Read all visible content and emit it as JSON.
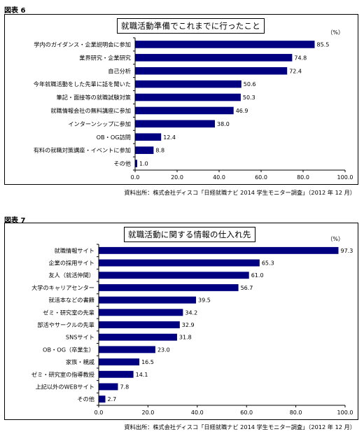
{
  "chart_data": [
    {
      "type": "bar",
      "orientation": "horizontal",
      "figure_label": "図表 6",
      "title": "就職活動準備でこれまでに行ったこと",
      "unit": "（%）",
      "source": "資料出所：株式会社ディスコ「日経就職ナビ 2014 学生モニター調査」（2012 年 12 月）",
      "categories": [
        "学内のガイダンス・企業説明会に参加",
        "業界研究・企業研究",
        "自己分析",
        "今年就職活動をした先輩に話を聞いた",
        "筆記・面接等の就職試験対策",
        "就職情報会社の無料講座に参加",
        "インターンシップに参加",
        "OB・OG訪問",
        "有料の就職対策講座・イベントに参加",
        "その他"
      ],
      "values": [
        85.5,
        74.8,
        72.4,
        50.6,
        50.3,
        46.9,
        38.0,
        12.4,
        8.8,
        1.0
      ],
      "value_labels": [
        "85.5",
        "74.8",
        "72.4",
        "50.6",
        "50.3",
        "46.9",
        "38.0",
        "12.4",
        "8.8",
        "1.0"
      ],
      "xlim": [
        0,
        100
      ],
      "xticks": [
        "0.0",
        "20.0",
        "40.0",
        "60.0",
        "80.0",
        "100.0"
      ],
      "grid": false,
      "bar_color": "#000080"
    },
    {
      "type": "bar",
      "orientation": "horizontal",
      "figure_label": "図表 7",
      "title": "就職活動に関する情報の仕入れ先",
      "unit": "（%）",
      "source": "資料出所：株式会社ディスコ「日経就職ナビ 2014 学生モニター調査」（2012 年 12 月）",
      "categories": [
        "就職情報サイト",
        "企業の採用サイト",
        "友人（就活仲間）",
        "大学のキャリアセンター",
        "就活本などの書籍",
        "ゼミ・研究室の先輩",
        "部活やサークルの先輩",
        "SNSサイト",
        "OB・OG（卒業生）",
        "家族・親戚",
        "ゼミ・研究室の指導教授",
        "上記以外のWEBサイト",
        "その他"
      ],
      "values": [
        97.3,
        65.3,
        61.0,
        56.7,
        39.5,
        34.2,
        32.9,
        31.8,
        23.0,
        16.5,
        14.1,
        7.8,
        2.7
      ],
      "value_labels": [
        "97.3",
        "65.3",
        "61.0",
        "56.7",
        "39.5",
        "34.2",
        "32.9",
        "31.8",
        "23.0",
        "16.5",
        "14.1",
        "7.8",
        "2.7"
      ],
      "xlim": [
        0,
        100
      ],
      "xticks": [
        "0.0",
        "20.0",
        "40.0",
        "60.0",
        "80.0",
        "100.0"
      ],
      "grid": false,
      "bar_color": "#000080"
    }
  ]
}
